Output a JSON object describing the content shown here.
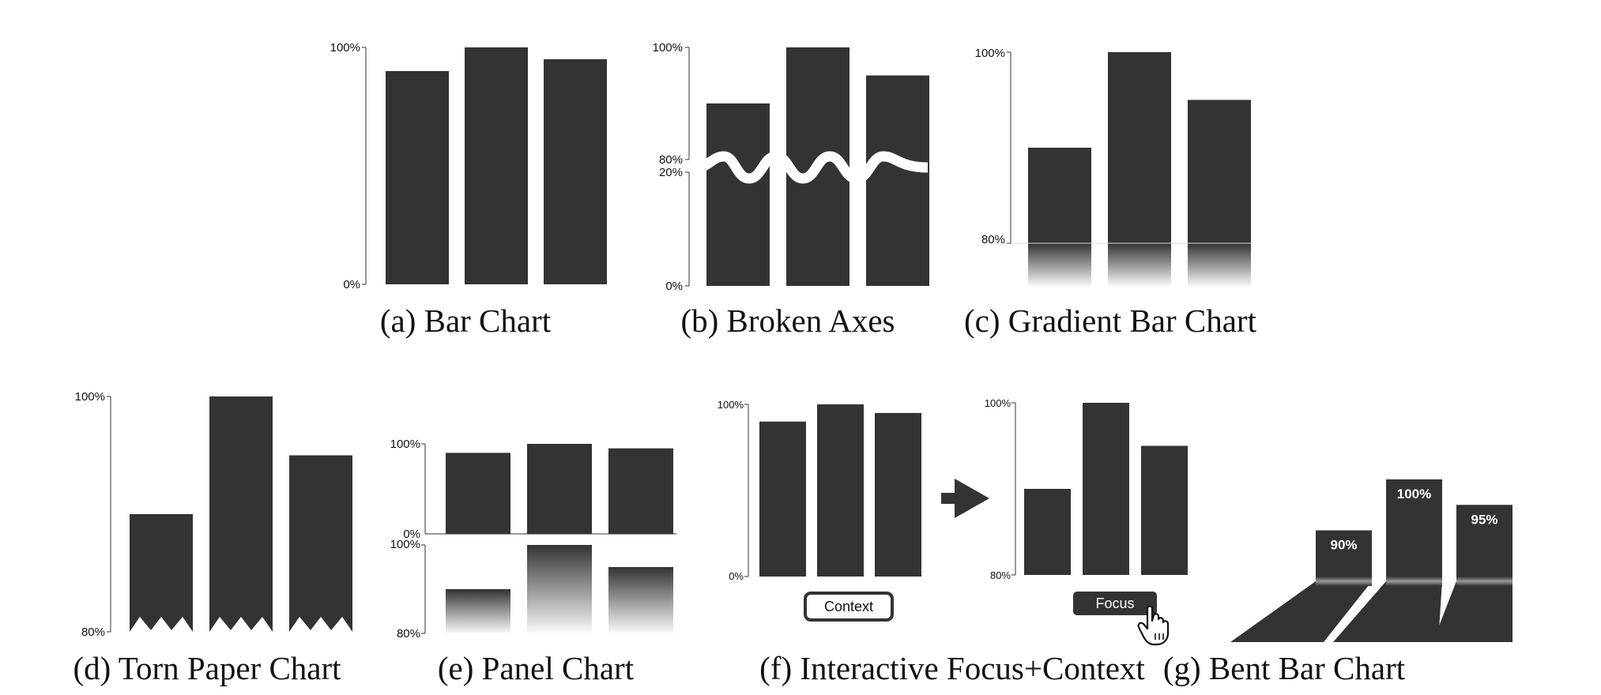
{
  "colors": {
    "bar": "#333333",
    "axis": "#333333",
    "background": "#ffffff",
    "text": "#111111"
  },
  "chart_data": [
    {
      "panel": "a",
      "type": "bar",
      "caption": "(a) Bar Chart",
      "values": [
        90,
        100,
        95
      ],
      "ylim": [
        0,
        100
      ],
      "ticks": [
        {
          "label": "100%",
          "value": 100
        },
        {
          "label": "0%",
          "value": 0
        }
      ]
    },
    {
      "panel": "b",
      "type": "bar",
      "caption": "(b) Broken Axes",
      "broken_axis": true,
      "values": [
        90,
        100,
        95
      ],
      "upper_range": [
        80,
        100
      ],
      "lower_range": [
        0,
        20
      ],
      "ticks": [
        {
          "label": "100%",
          "value": 100
        },
        {
          "label": "80%",
          "value": 80
        },
        {
          "label": "20%",
          "value": 20
        },
        {
          "label": "0%",
          "value": 0
        }
      ]
    },
    {
      "panel": "c",
      "type": "bar",
      "caption": "(c) Gradient Bar Chart",
      "values": [
        90,
        100,
        95
      ],
      "ylim": [
        80,
        100
      ],
      "gradient_below_baseline": true,
      "ticks": [
        {
          "label": "100%",
          "value": 100
        },
        {
          "label": "80%",
          "value": 80
        }
      ]
    },
    {
      "panel": "d",
      "type": "bar",
      "caption": "(d) Torn Paper Chart",
      "values": [
        90,
        100,
        95
      ],
      "ylim": [
        80,
        100
      ],
      "torn_base": true,
      "ticks": [
        {
          "label": "100%",
          "value": 100
        },
        {
          "label": "80%",
          "value": 80
        }
      ]
    },
    {
      "panel": "e",
      "type": "bar",
      "caption": "(e) Panel Chart",
      "values": [
        90,
        100,
        95
      ],
      "top_panel": {
        "ylim": [
          0,
          100
        ],
        "ticks": [
          {
            "label": "100%",
            "value": 100
          },
          {
            "label": "0%",
            "value": 0
          }
        ]
      },
      "bottom_panel": {
        "ylim": [
          80,
          100
        ],
        "ticks": [
          {
            "label": "100%",
            "value": 100
          },
          {
            "label": "80%",
            "value": 80
          }
        ]
      }
    },
    {
      "panel": "f",
      "type": "bar",
      "caption": "(f) Interactive Focus+Context",
      "values": [
        90,
        100,
        95
      ],
      "context_view": {
        "ylim": [
          0,
          100
        ],
        "button": "Context",
        "ticks": [
          {
            "label": "100%",
            "value": 100
          },
          {
            "label": "0%",
            "value": 0
          }
        ]
      },
      "focus_view": {
        "ylim": [
          80,
          100
        ],
        "button": "Focus",
        "ticks": [
          {
            "label": "100%",
            "value": 100
          },
          {
            "label": "80%",
            "value": 80
          }
        ]
      }
    },
    {
      "panel": "g",
      "type": "bar",
      "caption": "(g) Bent Bar Chart",
      "values": [
        90,
        100,
        95
      ],
      "ylim": [
        80,
        100
      ],
      "data_labels": [
        "90%",
        "100%",
        "95%"
      ]
    }
  ]
}
